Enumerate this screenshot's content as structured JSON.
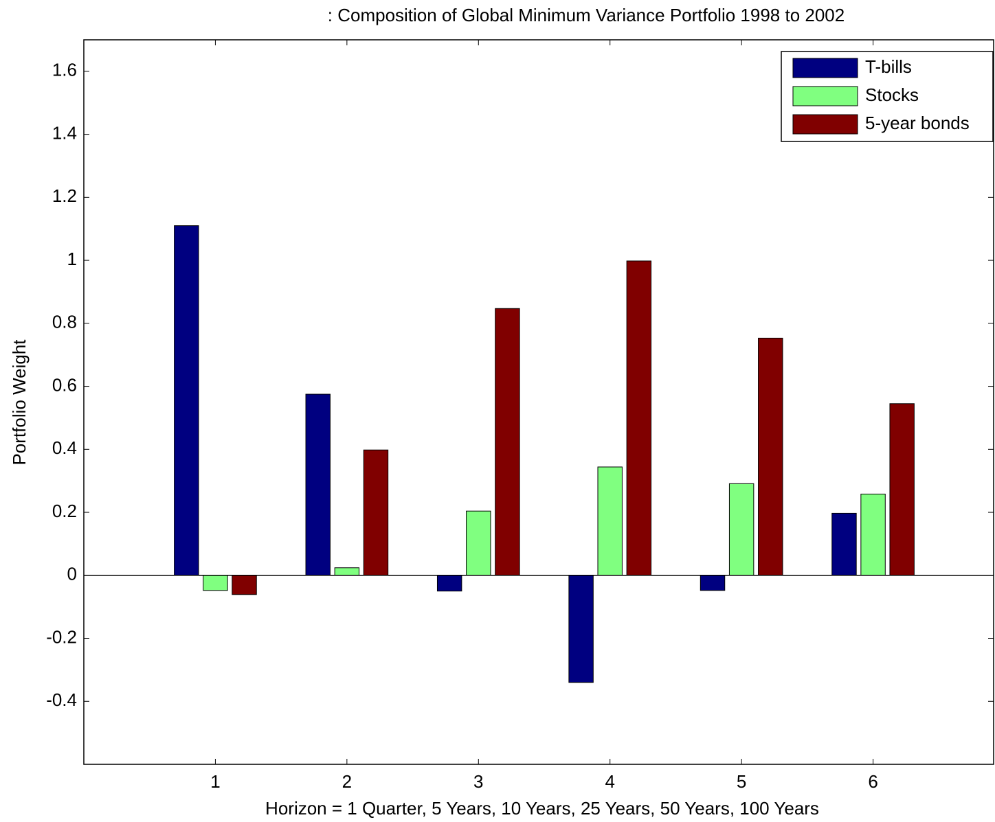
{
  "chart_data": {
    "type": "bar",
    "title": ": Composition of Global Minimum Variance Portfolio 1998 to 2002",
    "x_label": "Horizon = 1 Quarter, 5 Years, 10 Years, 25 Years, 50 Years, 100 Years",
    "y_label": "Portfolio Weight",
    "x": [
      1,
      2,
      3,
      4,
      5,
      6
    ],
    "xlim": [
      0,
      7
    ],
    "xticks": [
      1,
      2,
      3,
      4,
      5,
      6
    ],
    "ylim": [
      -0.6,
      1.7
    ],
    "yticks": [
      -0.4,
      -0.2,
      0,
      0.2,
      0.4,
      0.6,
      0.8,
      1,
      1.2,
      1.4,
      1.6
    ],
    "legend": "upper right",
    "series": [
      {
        "name": "T-bills",
        "color": "#000080",
        "values": [
          1.11,
          0.575,
          -0.05,
          -0.34,
          -0.048,
          0.197
        ]
      },
      {
        "name": "Stocks",
        "color": "#80ff80",
        "values": [
          -0.048,
          0.024,
          0.204,
          0.344,
          0.291,
          0.258
        ]
      },
      {
        "name": "5-year bonds",
        "color": "#800000",
        "values": [
          -0.061,
          0.398,
          0.847,
          0.998,
          0.753,
          0.545
        ]
      }
    ]
  }
}
